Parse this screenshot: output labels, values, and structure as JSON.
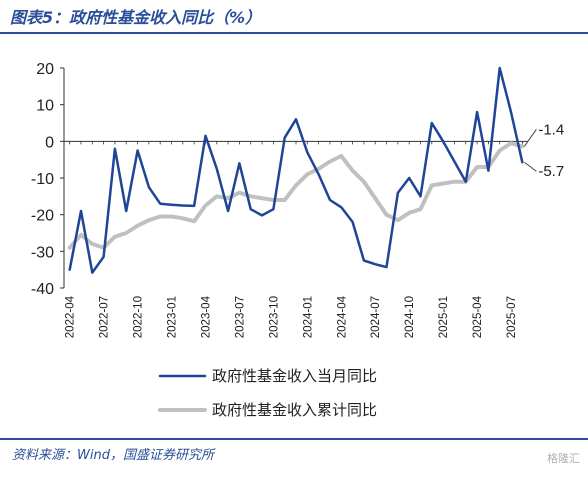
{
  "header": {
    "title": "图表5：政府性基金收入同比（%）"
  },
  "footer": {
    "source": "资料来源：Wind，国盛证券研究所",
    "watermark": "格隆汇"
  },
  "chart_data": {
    "type": "line",
    "x": [
      "2022-04",
      "2022-05",
      "2022-06",
      "2022-07",
      "2022-08",
      "2022-09",
      "2022-10",
      "2022-11",
      "2022-12",
      "2023-01",
      "2023-02",
      "2023-03",
      "2023-04",
      "2023-05",
      "2023-06",
      "2023-07",
      "2023-08",
      "2023-09",
      "2023-10",
      "2023-11",
      "2023-12",
      "2024-01",
      "2024-02",
      "2024-03",
      "2024-04",
      "2024-05",
      "2024-06",
      "2024-07",
      "2024-08",
      "2024-09",
      "2024-10",
      "2024-11",
      "2024-12",
      "2025-01",
      "2025-02",
      "2025-03",
      "2025-04",
      "2025-05",
      "2025-06",
      "2025-07",
      "2025-08"
    ],
    "x_tick_labels": [
      "2022-04",
      "2022-07",
      "2022-10",
      "2023-01",
      "2023-04",
      "2023-07",
      "2023-10",
      "2024-01",
      "2024-04",
      "2024-07",
      "2024-10",
      "2025-01",
      "2025-04",
      "2025-07"
    ],
    "series": [
      {
        "name": "政府性基金收入当月同比",
        "color": "#1f4597",
        "values": [
          -35,
          -19,
          -35.8,
          -31.5,
          -2,
          -19,
          -2.5,
          -12.5,
          -17,
          -17.3,
          -17.5,
          -17.6,
          1.5,
          -7.5,
          -19,
          -6,
          -18.5,
          -20.2,
          -18.5,
          1,
          6,
          -3,
          -9,
          -16,
          -18,
          -22,
          -32.5,
          -33.5,
          -34.3,
          -14,
          -10,
          -15,
          5,
          0,
          -5.5,
          -11,
          8,
          -8,
          20,
          8,
          -5.7
        ]
      },
      {
        "name": "政府性基金收入累计同比",
        "color": "#c0c0c0",
        "values": [
          -29,
          -25.5,
          -28,
          -29,
          -26,
          -25,
          -23,
          -21.5,
          -20.5,
          -20.5,
          -21,
          -21.8,
          -17.5,
          -15,
          -15.5,
          -14,
          -15,
          -15.5,
          -16,
          -16,
          -12,
          -9,
          -7.5,
          -5.5,
          -4,
          -8,
          -11,
          -15.5,
          -20,
          -21.5,
          -19.5,
          -18.5,
          -12,
          -11.5,
          -11,
          -11,
          -7,
          -7,
          -2.5,
          -0.5,
          -1.4
        ]
      }
    ],
    "end_labels": [
      "-1.4",
      "-5.7"
    ],
    "y_ticks": [
      "20",
      "10",
      "0",
      "-10",
      "-20",
      "-30",
      "-40"
    ],
    "ylim": [
      -40,
      20
    ],
    "grid": false,
    "legend": "bottom"
  }
}
